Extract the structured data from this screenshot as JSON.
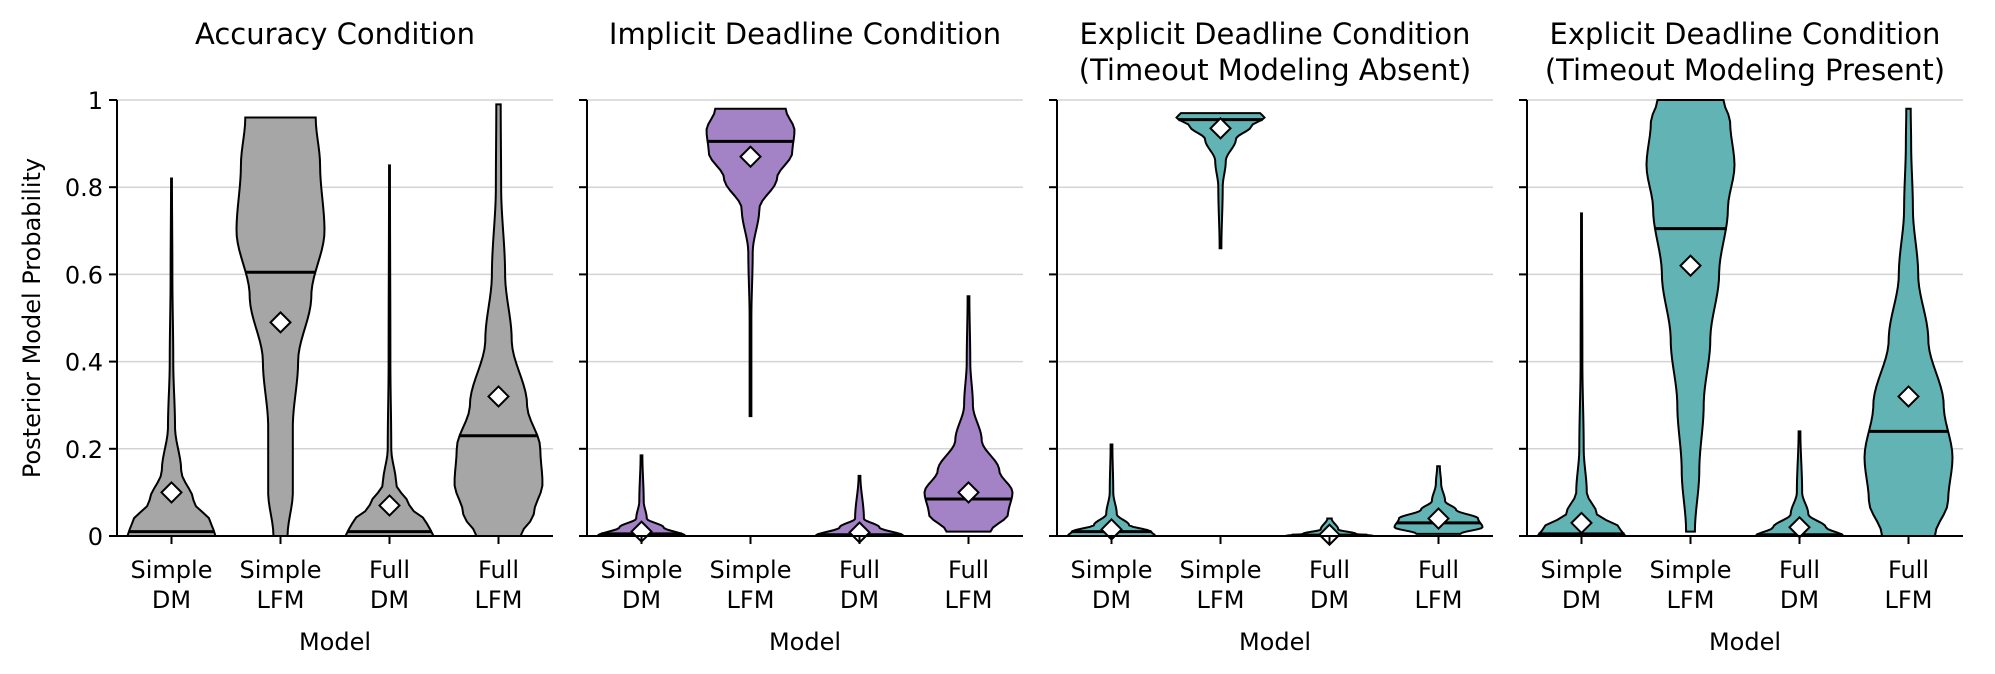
{
  "chart_data": {
    "type": "violin",
    "y_axis": {
      "label": "Posterior Model Probability",
      "ylim": [
        0,
        1
      ],
      "ticks": [
        0,
        0.2,
        0.4,
        0.6,
        0.8,
        1
      ],
      "tick_labels": [
        "0",
        "0.2",
        "0.4",
        "0.6",
        "0.8",
        "1"
      ],
      "grid": true
    },
    "x_axis": {
      "label": "Model",
      "categories": [
        [
          "Simple",
          "DM"
        ],
        [
          "Simple",
          "LFM"
        ],
        [
          "Full",
          "DM"
        ],
        [
          "Full",
          "LFM"
        ]
      ]
    },
    "panels": [
      {
        "title": [
          "Accuracy Condition"
        ],
        "color": "#a6a6a6",
        "violins": [
          {
            "min": 0.0,
            "max": 0.82,
            "median": 0.01,
            "mean": 0.1,
            "profile": [
              [
                0,
                1.0
              ],
              [
                0.03,
                0.9
              ],
              [
                0.08,
                0.5
              ],
              [
                0.15,
                0.22
              ],
              [
                0.25,
                0.08
              ],
              [
                0.4,
                0.04
              ],
              [
                0.6,
                0.02
              ],
              [
                0.82,
                0.01
              ]
            ]
          },
          {
            "min": 0.0,
            "max": 0.96,
            "median": 0.605,
            "mean": 0.49,
            "profile": [
              [
                0,
                0.16
              ],
              [
                0.1,
                0.28
              ],
              [
                0.25,
                0.28
              ],
              [
                0.4,
                0.4
              ],
              [
                0.55,
                0.7
              ],
              [
                0.7,
                1.0
              ],
              [
                0.85,
                0.9
              ],
              [
                0.96,
                0.8
              ]
            ]
          },
          {
            "min": 0.0,
            "max": 0.85,
            "median": 0.01,
            "mean": 0.07,
            "profile": [
              [
                0,
                1.0
              ],
              [
                0.03,
                0.85
              ],
              [
                0.07,
                0.45
              ],
              [
                0.12,
                0.15
              ],
              [
                0.2,
                0.04
              ],
              [
                0.4,
                0.02
              ],
              [
                0.85,
                0.01
              ]
            ]
          },
          {
            "min": 0.0,
            "max": 0.99,
            "median": 0.23,
            "mean": 0.32,
            "profile": [
              [
                0,
                0.5
              ],
              [
                0.05,
                0.8
              ],
              [
                0.12,
                1.0
              ],
              [
                0.2,
                0.95
              ],
              [
                0.3,
                0.65
              ],
              [
                0.45,
                0.3
              ],
              [
                0.6,
                0.15
              ],
              [
                0.8,
                0.06
              ],
              [
                0.99,
                0.05
              ]
            ]
          }
        ]
      },
      {
        "title": [
          "Implicit Deadline Condition"
        ],
        "color": "#a382c6",
        "violins": [
          {
            "min": 0.0,
            "max": 0.185,
            "median": 0.005,
            "mean": 0.01,
            "profile": [
              [
                0,
                1.0
              ],
              [
                0.02,
                0.5
              ],
              [
                0.04,
                0.12
              ],
              [
                0.08,
                0.05
              ],
              [
                0.185,
                0.02
              ]
            ]
          },
          {
            "min": 0.275,
            "max": 0.98,
            "median": 0.905,
            "mean": 0.87,
            "profile": [
              [
                0.275,
                0.02
              ],
              [
                0.5,
                0.02
              ],
              [
                0.65,
                0.05
              ],
              [
                0.75,
                0.2
              ],
              [
                0.82,
                0.6
              ],
              [
                0.88,
                0.95
              ],
              [
                0.93,
                1.0
              ],
              [
                0.98,
                0.8
              ]
            ]
          },
          {
            "min": 0.0,
            "max": 0.138,
            "median": 0.003,
            "mean": 0.008,
            "profile": [
              [
                0,
                1.0
              ],
              [
                0.02,
                0.45
              ],
              [
                0.04,
                0.1
              ],
              [
                0.138,
                0.02
              ]
            ]
          },
          {
            "min": 0.01,
            "max": 0.55,
            "median": 0.085,
            "mean": 0.1,
            "profile": [
              [
                0.01,
                0.5
              ],
              [
                0.05,
                0.9
              ],
              [
                0.1,
                1.0
              ],
              [
                0.15,
                0.7
              ],
              [
                0.22,
                0.3
              ],
              [
                0.3,
                0.1
              ],
              [
                0.4,
                0.04
              ],
              [
                0.55,
                0.02
              ]
            ]
          }
        ]
      },
      {
        "title": [
          "Explicit Deadline Condition",
          "(Timeout Modeling Absent)"
        ],
        "color": "#62b4b4",
        "violins": [
          {
            "min": 0.0,
            "max": 0.21,
            "median": 0.01,
            "mean": 0.015,
            "profile": [
              [
                0,
                1.0
              ],
              [
                0.01,
                0.9
              ],
              [
                0.025,
                0.4
              ],
              [
                0.05,
                0.12
              ],
              [
                0.1,
                0.04
              ],
              [
                0.21,
                0.02
              ]
            ]
          },
          {
            "min": 0.66,
            "max": 0.97,
            "median": 0.955,
            "mean": 0.935,
            "profile": [
              [
                0.66,
                0.02
              ],
              [
                0.8,
                0.05
              ],
              [
                0.86,
                0.12
              ],
              [
                0.91,
                0.35
              ],
              [
                0.94,
                0.7
              ],
              [
                0.96,
                1.0
              ],
              [
                0.97,
                0.9
              ]
            ]
          },
          {
            "min": 0.0,
            "max": 0.04,
            "median": 0.002,
            "mean": 0.003,
            "profile": [
              [
                0,
                1.0
              ],
              [
                0.005,
                0.6
              ],
              [
                0.015,
                0.2
              ],
              [
                0.04,
                0.05
              ]
            ]
          },
          {
            "min": 0.005,
            "max": 0.16,
            "median": 0.03,
            "mean": 0.04,
            "profile": [
              [
                0.005,
                0.5
              ],
              [
                0.02,
                1.0
              ],
              [
                0.04,
                0.9
              ],
              [
                0.06,
                0.4
              ],
              [
                0.08,
                0.15
              ],
              [
                0.12,
                0.06
              ],
              [
                0.16,
                0.03
              ]
            ]
          }
        ]
      },
      {
        "title": [
          "Explicit Deadline Condition",
          "(Timeout Modeling Present)"
        ],
        "color": "#62b4b4",
        "violins": [
          {
            "min": 0.0,
            "max": 0.74,
            "median": 0.005,
            "mean": 0.03,
            "profile": [
              [
                0,
                1.0
              ],
              [
                0.02,
                0.85
              ],
              [
                0.05,
                0.35
              ],
              [
                0.1,
                0.12
              ],
              [
                0.2,
                0.05
              ],
              [
                0.4,
                0.02
              ],
              [
                0.74,
                0.01
              ]
            ]
          },
          {
            "min": 0.01,
            "max": 1.0,
            "median": 0.705,
            "mean": 0.62,
            "profile": [
              [
                0.01,
                0.1
              ],
              [
                0.15,
                0.2
              ],
              [
                0.3,
                0.3
              ],
              [
                0.45,
                0.45
              ],
              [
                0.6,
                0.65
              ],
              [
                0.75,
                0.85
              ],
              [
                0.85,
                1.0
              ],
              [
                0.95,
                0.9
              ],
              [
                1.0,
                0.75
              ]
            ]
          },
          {
            "min": 0.0,
            "max": 0.24,
            "median": 0.003,
            "mean": 0.02,
            "profile": [
              [
                0,
                1.0
              ],
              [
                0.02,
                0.6
              ],
              [
                0.05,
                0.2
              ],
              [
                0.1,
                0.06
              ],
              [
                0.24,
                0.02
              ]
            ]
          },
          {
            "min": 0.0,
            "max": 0.98,
            "median": 0.24,
            "mean": 0.32,
            "profile": [
              [
                0,
                0.6
              ],
              [
                0.08,
                0.9
              ],
              [
                0.18,
                1.0
              ],
              [
                0.3,
                0.8
              ],
              [
                0.45,
                0.45
              ],
              [
                0.6,
                0.22
              ],
              [
                0.75,
                0.1
              ],
              [
                0.9,
                0.06
              ],
              [
                0.98,
                0.05
              ]
            ]
          }
        ]
      }
    ]
  }
}
